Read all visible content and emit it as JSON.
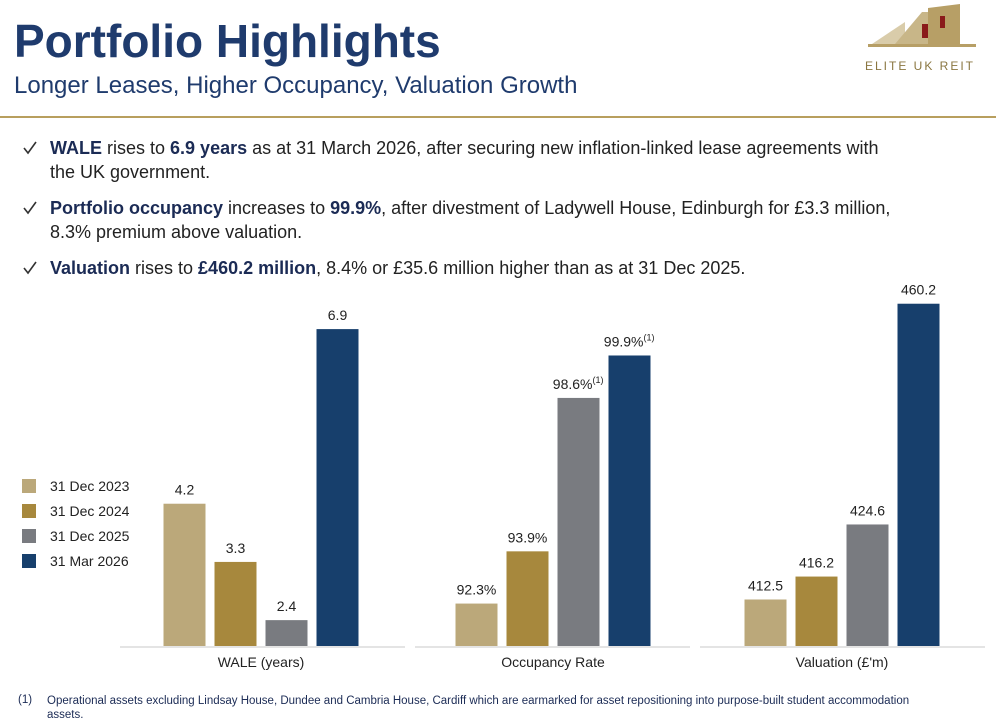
{
  "header": {
    "title": "Portfolio Highlights",
    "subtitle": "Longer Leases, Higher Occupancy, Valuation Growth",
    "logo_text": "ELITE UK REIT"
  },
  "bullets": [
    {
      "parts": [
        {
          "text": "WALE",
          "bold": true
        },
        {
          "text": " rises to ",
          "bold": false
        },
        {
          "text": "6.9 years",
          "bold": true
        },
        {
          "text": " as at 31 March 2026, after securing new inflation-linked lease agreements with the UK government.",
          "bold": false
        }
      ]
    },
    {
      "parts": [
        {
          "text": "Portfolio occupancy",
          "bold": true
        },
        {
          "text": " increases to ",
          "bold": false
        },
        {
          "text": "99.9%",
          "bold": true
        },
        {
          "text": ", after divestment of Ladywell House, Edinburgh for £3.3 million, 8.3% premium above valuation.",
          "bold": false
        }
      ]
    },
    {
      "parts": [
        {
          "text": "Valuation",
          "bold": true
        },
        {
          "text": " rises to ",
          "bold": false
        },
        {
          "text": "£460.2 million",
          "bold": true
        },
        {
          "text": ", 8.4% or £35.6 million higher than as at 31 Dec 2025.",
          "bold": false
        }
      ]
    }
  ],
  "chart_data": {
    "type": "bar",
    "categories": [
      "WALE (years)",
      "Occupancy Rate",
      "Valuation (£'m)"
    ],
    "ylims": [
      [
        2,
        7.35
      ],
      [
        91,
        101.6
      ],
      [
        405,
        460.8
      ]
    ],
    "series": [
      {
        "name": "31 Dec 2023",
        "color": "#bba87a",
        "values": [
          4.2,
          92.3,
          412.5
        ],
        "value_labels": [
          "4.2",
          "92.3%",
          "412.5"
        ]
      },
      {
        "name": "31 Dec 2024",
        "color": "#a7883d",
        "values": [
          3.3,
          93.9,
          416.2
        ],
        "value_labels": [
          "3.3",
          "93.9%",
          "416.2"
        ]
      },
      {
        "name": "31 Dec 2025",
        "color": "#797b80",
        "values": [
          2.4,
          98.6,
          424.6
        ],
        "value_labels": [
          "2.4",
          "98.6%",
          "424.6"
        ],
        "value_label_notes": [
          null,
          "(1)",
          null
        ]
      },
      {
        "name": "31 Mar 2026",
        "color": "#173f6c",
        "values": [
          6.9,
          99.9,
          460.2
        ],
        "value_labels": [
          "6.9",
          "99.9%",
          "460.2"
        ],
        "value_label_notes": [
          null,
          "(1)",
          null
        ]
      }
    ]
  },
  "footnote": {
    "marker": "(1)",
    "text": "Operational assets excluding Lindsay House, Dundee and Cambria House, Cardiff which are earmarked for asset repositioning into purpose-built student accommodation assets."
  }
}
